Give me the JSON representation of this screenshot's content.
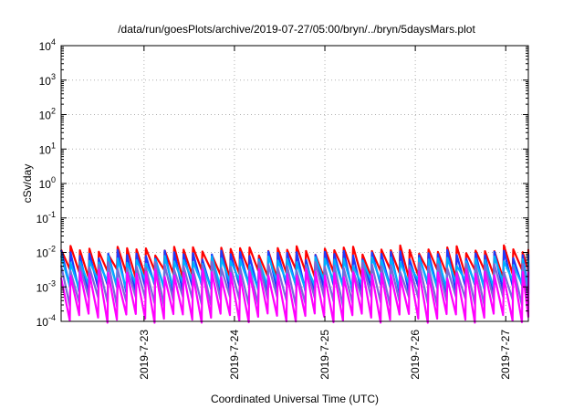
{
  "chart_data": {
    "type": "line",
    "title": "/data/run/goesPlots/archive/2019-07-27/05:00/bryn/../bryn/5daysMars.plot",
    "xlabel": "Coordinated Universal Time (UTC)",
    "ylabel": "cSv/day",
    "yscale": "log",
    "ylim": [
      0.0001,
      10000
    ],
    "xlim": [
      "2019-07-22T02:00",
      "2019-07-27T06:00"
    ],
    "y_ticks": [
      {
        "base": "10",
        "exp": "-4",
        "value": 0.0001
      },
      {
        "base": "10",
        "exp": "-3",
        "value": 0.001
      },
      {
        "base": "10",
        "exp": "-2",
        "value": 0.01
      },
      {
        "base": "10",
        "exp": "-1",
        "value": 0.1
      },
      {
        "base": "10",
        "exp": "0",
        "value": 1
      },
      {
        "base": "10",
        "exp": "1",
        "value": 10
      },
      {
        "base": "10",
        "exp": "2",
        "value": 100
      },
      {
        "base": "10",
        "exp": "3",
        "value": 1000
      },
      {
        "base": "10",
        "exp": "4",
        "value": 10000
      }
    ],
    "x_ticks": [
      {
        "label": "2019-7-23",
        "value": "2019-07-23T00:00"
      },
      {
        "label": "2019-7-24",
        "value": "2019-07-24T00:00"
      },
      {
        "label": "2019-7-25",
        "value": "2019-07-25T00:00"
      },
      {
        "label": "2019-7-26",
        "value": "2019-07-26T00:00"
      },
      {
        "label": "2019-7-27",
        "value": "2019-07-27T00:00"
      }
    ],
    "grid": true,
    "pattern": {
      "period_hours": 2.5,
      "peak_times_sample": [
        "2019-07-22T12:00",
        "2019-07-22T14:30",
        "2019-07-22T17:00"
      ],
      "note_values_are_approximate_sawtooth": true
    },
    "series": [
      {
        "color": "#ff0000",
        "peak": 0.012,
        "trough": 0.0025
      },
      {
        "color": "#1a3cff",
        "peak": 0.009,
        "trough": 0.0009
      },
      {
        "color": "#00b0ff",
        "peak": 0.006,
        "trough": 0.0012
      },
      {
        "color": "#7a6ad8",
        "peak": 0.004,
        "trough": 0.0004
      },
      {
        "color": "#ff00ff",
        "peak": 0.0025,
        "trough": 0.00013
      }
    ]
  }
}
